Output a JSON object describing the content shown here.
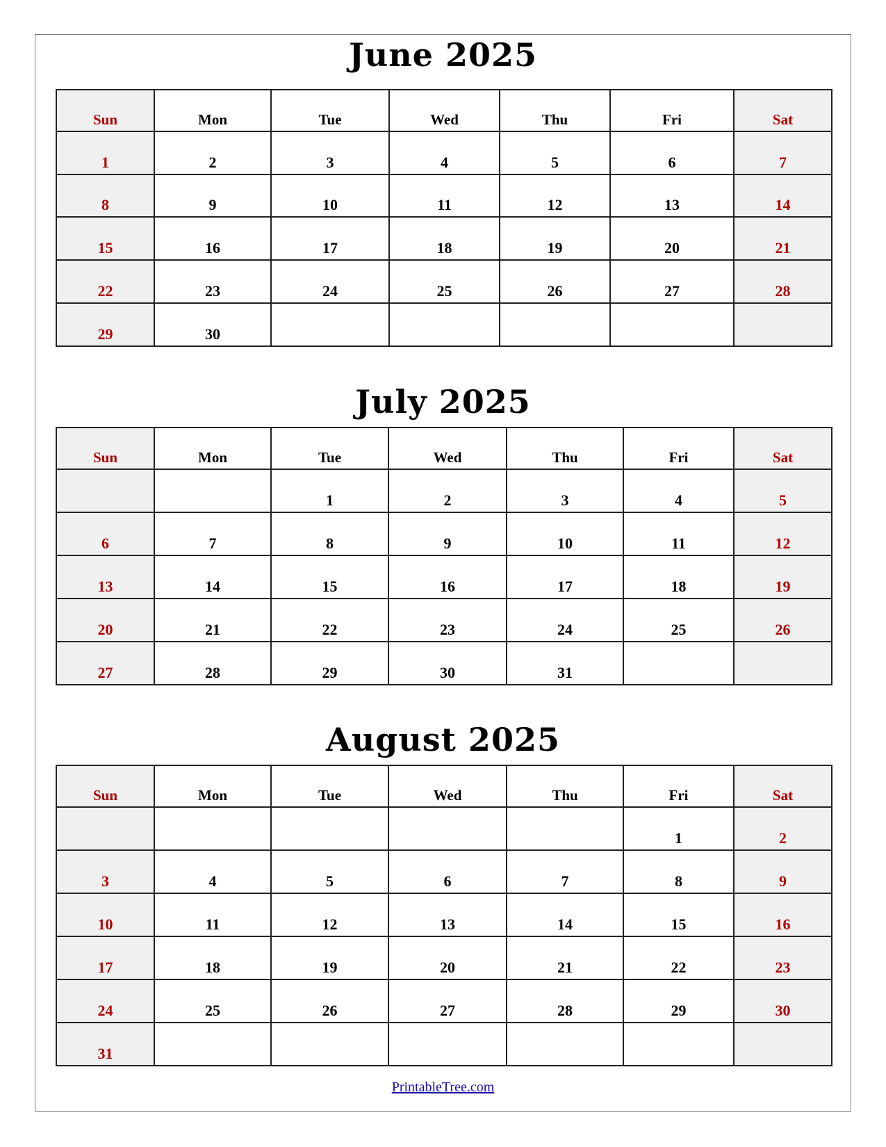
{
  "weekday_headers": [
    "Sun",
    "Mon",
    "Tue",
    "Wed",
    "Thu",
    "Fri",
    "Sat"
  ],
  "colors": {
    "weekend_text": "#b00000",
    "weekend_bg": "#f0f0f0",
    "link": "#1a0dab"
  },
  "months": [
    {
      "title": "June 2025",
      "weeks": [
        [
          "1",
          "2",
          "3",
          "4",
          "5",
          "6",
          "7"
        ],
        [
          "8",
          "9",
          "10",
          "11",
          "12",
          "13",
          "14"
        ],
        [
          "15",
          "16",
          "17",
          "18",
          "19",
          "20",
          "21"
        ],
        [
          "22",
          "23",
          "24",
          "25",
          "26",
          "27",
          "28"
        ],
        [
          "29",
          "30",
          "",
          "",
          "",
          "",
          ""
        ]
      ]
    },
    {
      "title": "July 2025",
      "weeks": [
        [
          "",
          "",
          "1",
          "2",
          "3",
          "4",
          "5"
        ],
        [
          "6",
          "7",
          "8",
          "9",
          "10",
          "11",
          "12"
        ],
        [
          "13",
          "14",
          "15",
          "16",
          "17",
          "18",
          "19"
        ],
        [
          "20",
          "21",
          "22",
          "23",
          "24",
          "25",
          "26"
        ],
        [
          "27",
          "28",
          "29",
          "30",
          "31",
          "",
          ""
        ]
      ]
    },
    {
      "title": "August 2025",
      "weeks": [
        [
          "",
          "",
          "",
          "",
          "",
          "1",
          "2"
        ],
        [
          "3",
          "4",
          "5",
          "6",
          "7",
          "8",
          "9"
        ],
        [
          "10",
          "11",
          "12",
          "13",
          "14",
          "15",
          "16"
        ],
        [
          "17",
          "18",
          "19",
          "20",
          "21",
          "22",
          "23"
        ],
        [
          "24",
          "25",
          "26",
          "27",
          "28",
          "29",
          "30"
        ],
        [
          "31",
          "",
          "",
          "",
          "",
          "",
          ""
        ]
      ]
    }
  ],
  "footer": {
    "link_text": "PrintableTree.com"
  }
}
